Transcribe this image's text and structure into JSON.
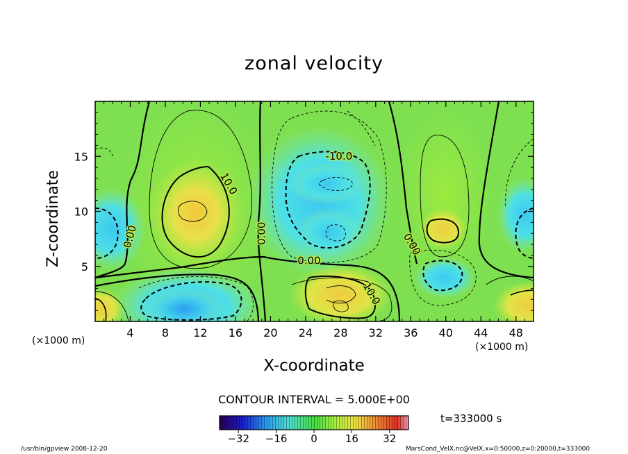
{
  "chart_data": {
    "type": "heatmap",
    "title": "zonal velocity",
    "xlabel": "X-coordinate",
    "ylabel": "Z-coordinate",
    "x_unit": "(×1000 m)",
    "x_ticks": [
      4,
      8,
      12,
      16,
      20,
      24,
      28,
      32,
      36,
      40,
      44,
      48
    ],
    "y_ticks": [
      5,
      10,
      15
    ],
    "xlim": [
      0,
      50
    ],
    "ylim": [
      0,
      20
    ],
    "contour_labels": [
      {
        "text": "10.0",
        "x": 15.2,
        "y": 12.5,
        "rot": 60
      },
      {
        "text": "-10.0",
        "x": 27.8,
        "y": 15.0,
        "rot": 0
      },
      {
        "text": "0.00",
        "x": 4.0,
        "y": 7.7,
        "rot": -75
      },
      {
        "text": "0.00",
        "x": 19.0,
        "y": 8.0,
        "rot": -90
      },
      {
        "text": "0.00",
        "x": 24.4,
        "y": 5.5,
        "rot": 0
      },
      {
        "text": "0.00",
        "x": 36.1,
        "y": 7.0,
        "rot": 60
      },
      {
        "text": "10.0",
        "x": 31.5,
        "y": 2.5,
        "rot": 60
      }
    ],
    "colorbar": {
      "ticks": [
        -32,
        -16,
        0,
        16,
        32
      ],
      "range": [
        -40,
        40
      ]
    },
    "contour_interval": "CONTOUR INTERVAL = 5.000E+00",
    "time": "t=333000 s"
  },
  "footer": {
    "left": "/usr/bin/gpview  2008-12-20",
    "right": "MarsCond_VelX.nc@VelX,x=0:50000,z=0:20000,t=333000"
  },
  "colors": {
    "frame": "#000000",
    "background": "#ffffff"
  }
}
